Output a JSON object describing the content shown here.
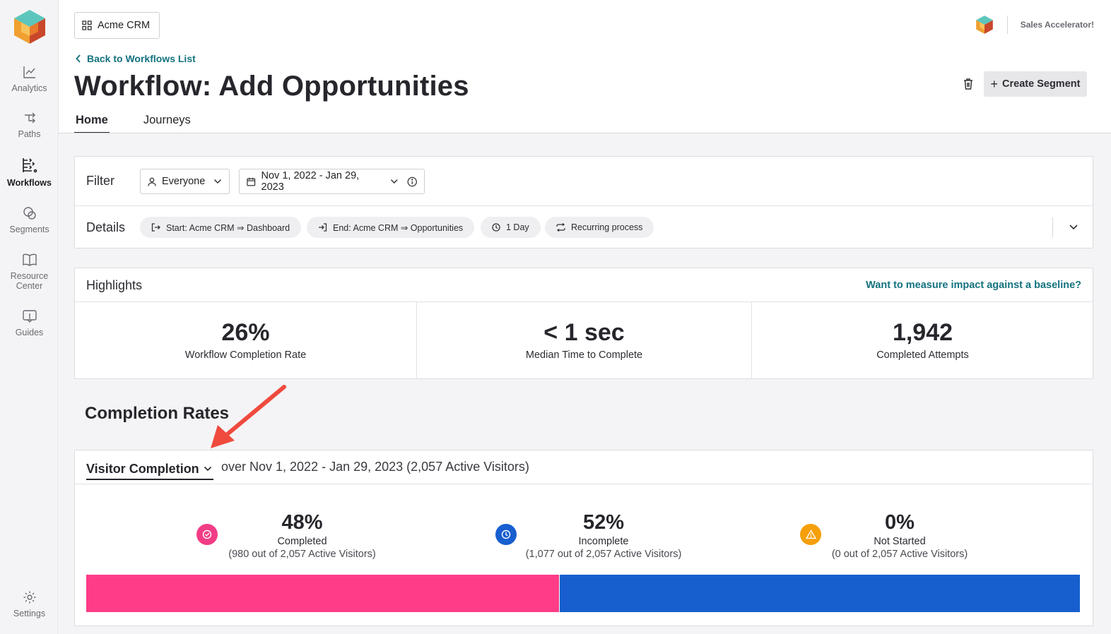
{
  "sidebar": {
    "logo": "product-logo",
    "items": [
      {
        "label": "Analytics",
        "icon": "chart-line-icon",
        "active": false
      },
      {
        "label": "Paths",
        "icon": "paths-icon",
        "active": false
      },
      {
        "label": "Workflows",
        "icon": "workflows-icon",
        "active": true
      },
      {
        "label": "Segments",
        "icon": "segments-icon",
        "active": false
      },
      {
        "label": "Resource Center",
        "icon": "book-icon",
        "active": false
      },
      {
        "label": "Guides",
        "icon": "guide-icon",
        "active": false
      },
      {
        "label": "Settings",
        "icon": "gear-icon",
        "active": false
      }
    ]
  },
  "header": {
    "app_switcher": "Acme CRM",
    "account_name": "Sales Accelerator!",
    "back_link": "Back to Workflows List",
    "title": "Workflow: Add Opportunities",
    "create_segment": "Create Segment",
    "tabs": [
      {
        "label": "Home",
        "active": true
      },
      {
        "label": "Journeys",
        "active": false
      }
    ]
  },
  "filter": {
    "label": "Filter",
    "segment": "Everyone",
    "date_range": "Nov 1, 2022 - Jan 29, 2023"
  },
  "details": {
    "label": "Details",
    "chips": [
      {
        "label": "Start: Acme CRM ⇒ Dashboard",
        "icon": "sign-in-icon"
      },
      {
        "label": "End: Acme CRM ⇒ Opportunities",
        "icon": "sign-out-icon"
      },
      {
        "label": "1 Day",
        "icon": "clock-icon"
      },
      {
        "label": "Recurring process",
        "icon": "repeat-icon"
      }
    ]
  },
  "highlights": {
    "title": "Highlights",
    "baseline_link": "Want to measure impact against a baseline?",
    "metrics": [
      {
        "value": "26%",
        "label": "Workflow Completion Rate"
      },
      {
        "value": "< 1 sec",
        "label": "Median Time to Complete"
      },
      {
        "value": "1,942",
        "label": "Completed Attempts"
      }
    ]
  },
  "completion": {
    "section_title": "Completion Rates",
    "selector": "Visitor Completion",
    "description": "over Nov 1, 2022 - Jan 29, 2023 (2,057 Active Visitors)",
    "stats": [
      {
        "pct": "48%",
        "name": "Completed",
        "sub": "(980 out of 2,057 Active Visitors)",
        "icon": "check-circle-icon",
        "color": "#f23d86"
      },
      {
        "pct": "52%",
        "name": "Incomplete",
        "sub": "(1,077 out of 2,057 Active Visitors)",
        "icon": "clock-icon",
        "color": "#175fd0"
      },
      {
        "pct": "0%",
        "name": "Not Started",
        "sub": "(0 out of 2,057 Active Visitors)",
        "icon": "warning-icon",
        "color": "#f59f0b"
      }
    ],
    "bar": [
      {
        "name": "Completed",
        "fraction": 0.4764,
        "color": "#ff3d87"
      },
      {
        "name": "Incomplete",
        "fraction": 0.5236,
        "color": "#175fce"
      },
      {
        "name": "Not Started",
        "fraction": 0.0,
        "color": "#f59f0b"
      }
    ]
  }
}
